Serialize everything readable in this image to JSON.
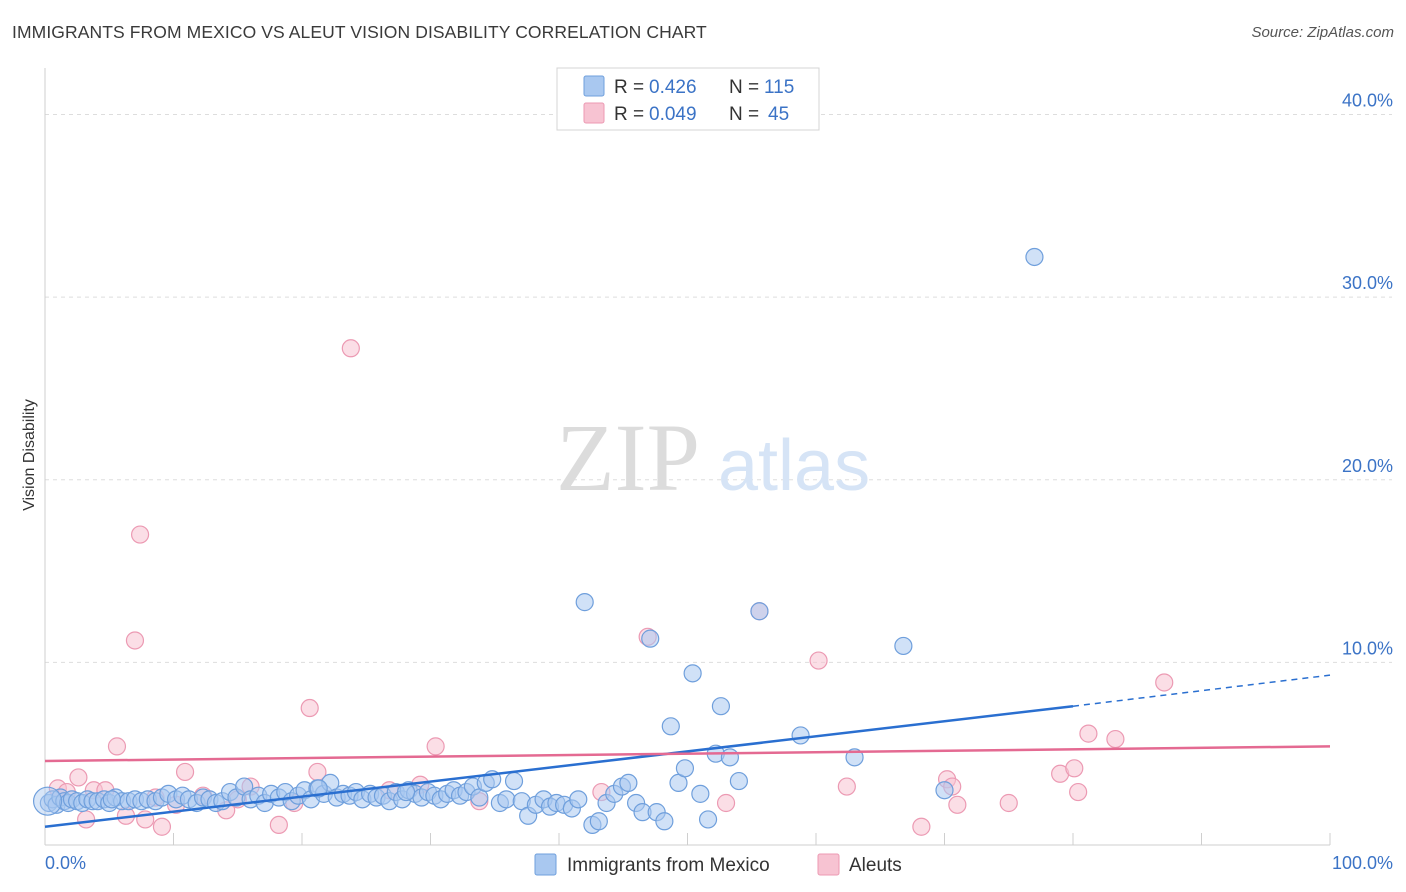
{
  "header": {
    "title": "IMMIGRANTS FROM MEXICO VS ALEUT VISION DISABILITY CORRELATION CHART",
    "source": "Source: ZipAtlas.com"
  },
  "watermark": {
    "zip": "ZIP",
    "atlas": "atlas"
  },
  "colors": {
    "blue_fill": "#a9c8f0",
    "blue_stroke": "#6f9fdc",
    "blue_line": "#2a6fd0",
    "pink_fill": "#f7c3d2",
    "pink_stroke": "#ec9ab3",
    "pink_line": "#e46a92",
    "tick_label": "#3b73c6",
    "grid": "#dddddd"
  },
  "chart_data": {
    "type": "scatter",
    "title": "IMMIGRANTS FROM MEXICO VS ALEUT VISION DISABILITY CORRELATION CHART",
    "xlabel": "",
    "ylabel": "Vision Disability",
    "xlim": [
      0,
      100
    ],
    "ylim": [
      0,
      42
    ],
    "x_tick_labels": [
      "0.0%",
      "100.0%"
    ],
    "y_ticks": [
      10,
      20,
      30,
      40
    ],
    "y_tick_labels": [
      "10.0%",
      "20.0%",
      "30.0%",
      "40.0%"
    ],
    "legend_top": [
      {
        "series": "Immigrants from Mexico",
        "r_label": "R =",
        "r_value": "0.426",
        "n_label": "N =",
        "n_value": "115"
      },
      {
        "series": "Aleuts",
        "r_label": "R =",
        "r_value": "0.049",
        "n_label": "N =",
        "n_value": "45"
      }
    ],
    "legend_bottom": [
      "Immigrants from Mexico",
      "Aleuts"
    ],
    "series": [
      {
        "name": "Immigrants from Mexico",
        "color": "blue",
        "trend": {
          "x0": 0,
          "y0": 1.0,
          "x1": 80,
          "y1": 7.6,
          "dash_to_x": 100,
          "dash_to_y": 9.3
        },
        "points": [
          [
            0.3,
            2.3
          ],
          [
            0.6,
            2.5
          ],
          [
            0.9,
            2.2
          ],
          [
            1.2,
            2.6
          ],
          [
            1.5,
            2.4
          ],
          [
            1.8,
            2.3
          ],
          [
            2.1,
            2.5
          ],
          [
            2.5,
            2.4
          ],
          [
            2.9,
            2.3
          ],
          [
            3.3,
            2.5
          ],
          [
            3.7,
            2.4
          ],
          [
            4.1,
            2.4
          ],
          [
            4.6,
            2.5
          ],
          [
            5.0,
            2.3
          ],
          [
            5.5,
            2.6
          ],
          [
            6.0,
            2.4
          ],
          [
            6.5,
            2.4
          ],
          [
            7.0,
            2.5
          ],
          [
            7.5,
            2.4
          ],
          [
            8.0,
            2.5
          ],
          [
            8.6,
            2.4
          ],
          [
            9.1,
            2.6
          ],
          [
            9.6,
            2.8
          ],
          [
            10.2,
            2.5
          ],
          [
            10.7,
            2.7
          ],
          [
            11.2,
            2.5
          ],
          [
            11.8,
            2.3
          ],
          [
            12.3,
            2.6
          ],
          [
            12.8,
            2.5
          ],
          [
            13.3,
            2.3
          ],
          [
            13.8,
            2.4
          ],
          [
            14.4,
            2.9
          ],
          [
            14.9,
            2.6
          ],
          [
            15.5,
            3.2
          ],
          [
            16.0,
            2.5
          ],
          [
            16.6,
            2.7
          ],
          [
            17.1,
            2.3
          ],
          [
            17.6,
            2.8
          ],
          [
            18.2,
            2.6
          ],
          [
            18.7,
            2.9
          ],
          [
            19.2,
            2.4
          ],
          [
            19.7,
            2.7
          ],
          [
            20.2,
            3.0
          ],
          [
            20.7,
            2.5
          ],
          [
            21.2,
            3.1
          ],
          [
            21.7,
            2.8
          ],
          [
            22.2,
            3.4
          ],
          [
            22.7,
            2.6
          ],
          [
            23.2,
            2.8
          ],
          [
            23.7,
            2.7
          ],
          [
            24.2,
            2.9
          ],
          [
            24.7,
            2.5
          ],
          [
            25.3,
            2.8
          ],
          [
            25.8,
            2.6
          ],
          [
            26.3,
            2.7
          ],
          [
            26.8,
            2.4
          ],
          [
            27.3,
            2.9
          ],
          [
            27.8,
            2.5
          ],
          [
            28.3,
            3.0
          ],
          [
            28.8,
            2.8
          ],
          [
            29.3,
            2.6
          ],
          [
            29.8,
            2.9
          ],
          [
            30.3,
            2.7
          ],
          [
            30.8,
            2.5
          ],
          [
            31.3,
            2.8
          ],
          [
            31.8,
            3.0
          ],
          [
            32.3,
            2.7
          ],
          [
            32.8,
            2.9
          ],
          [
            33.3,
            3.2
          ],
          [
            33.8,
            2.6
          ],
          [
            34.3,
            3.4
          ],
          [
            34.8,
            3.6
          ],
          [
            35.4,
            2.3
          ],
          [
            35.9,
            2.5
          ],
          [
            36.5,
            3.5
          ],
          [
            37.1,
            2.4
          ],
          [
            37.6,
            1.6
          ],
          [
            38.2,
            2.2
          ],
          [
            38.8,
            2.5
          ],
          [
            39.3,
            2.1
          ],
          [
            39.8,
            2.3
          ],
          [
            40.4,
            2.2
          ],
          [
            41.0,
            2.0
          ],
          [
            41.5,
            2.5
          ],
          [
            42.0,
            13.3
          ],
          [
            42.6,
            1.1
          ],
          [
            43.1,
            1.3
          ],
          [
            43.7,
            2.3
          ],
          [
            44.3,
            2.8
          ],
          [
            44.9,
            3.2
          ],
          [
            45.4,
            3.4
          ],
          [
            46.0,
            2.3
          ],
          [
            46.5,
            1.8
          ],
          [
            47.1,
            11.3
          ],
          [
            47.6,
            1.8
          ],
          [
            48.2,
            1.3
          ],
          [
            48.7,
            6.5
          ],
          [
            49.3,
            3.4
          ],
          [
            49.8,
            4.2
          ],
          [
            50.4,
            9.4
          ],
          [
            51.0,
            2.8
          ],
          [
            51.6,
            1.4
          ],
          [
            52.2,
            5.0
          ],
          [
            52.6,
            7.6
          ],
          [
            53.3,
            4.8
          ],
          [
            54.0,
            3.5
          ],
          [
            55.6,
            12.8
          ],
          [
            58.8,
            6.0
          ],
          [
            63.0,
            4.8
          ],
          [
            66.8,
            10.9
          ],
          [
            77.0,
            32.2
          ],
          [
            70.0,
            3.0
          ],
          [
            21.3,
            3.1
          ],
          [
            28.1,
            2.9
          ],
          [
            5.2,
            2.5
          ]
        ]
      },
      {
        "name": "Aleuts",
        "color": "pink",
        "trend": {
          "x0": 0,
          "y0": 4.6,
          "x1": 100,
          "y1": 5.4
        },
        "points": [
          [
            1.0,
            3.1
          ],
          [
            1.7,
            2.9
          ],
          [
            2.6,
            3.7
          ],
          [
            3.2,
            1.4
          ],
          [
            3.8,
            3.0
          ],
          [
            4.7,
            3.0
          ],
          [
            5.6,
            5.4
          ],
          [
            6.3,
            1.6
          ],
          [
            7.0,
            11.2
          ],
          [
            7.4,
            17.0
          ],
          [
            7.8,
            1.4
          ],
          [
            8.6,
            2.6
          ],
          [
            9.1,
            1.0
          ],
          [
            10.2,
            2.2
          ],
          [
            10.9,
            4.0
          ],
          [
            12.3,
            2.7
          ],
          [
            14.1,
            1.9
          ],
          [
            15.0,
            2.5
          ],
          [
            16.0,
            3.2
          ],
          [
            18.2,
            1.1
          ],
          [
            19.4,
            2.3
          ],
          [
            20.6,
            7.5
          ],
          [
            21.2,
            4.0
          ],
          [
            23.8,
            27.2
          ],
          [
            26.8,
            3.0
          ],
          [
            29.2,
            3.3
          ],
          [
            30.4,
            5.4
          ],
          [
            33.8,
            2.4
          ],
          [
            43.3,
            2.9
          ],
          [
            46.9,
            11.4
          ],
          [
            53.0,
            2.3
          ],
          [
            55.6,
            12.8
          ],
          [
            60.2,
            10.1
          ],
          [
            62.4,
            3.2
          ],
          [
            68.2,
            1.0
          ],
          [
            70.2,
            3.6
          ],
          [
            70.6,
            3.2
          ],
          [
            71.0,
            2.2
          ],
          [
            75.0,
            2.3
          ],
          [
            79.0,
            3.9
          ],
          [
            80.1,
            4.2
          ],
          [
            80.4,
            2.9
          ],
          [
            81.2,
            6.1
          ],
          [
            83.3,
            5.8
          ],
          [
            87.1,
            8.9
          ]
        ]
      }
    ]
  }
}
